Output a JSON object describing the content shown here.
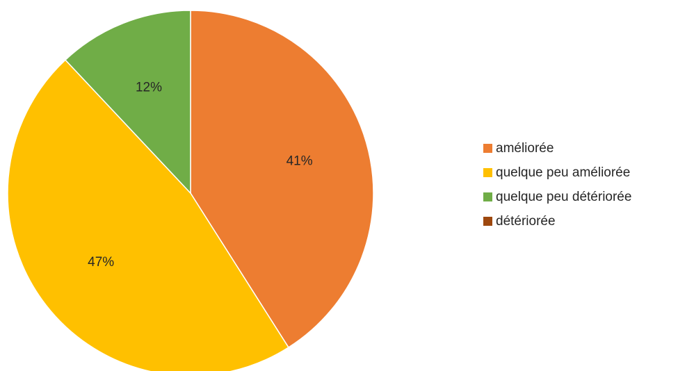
{
  "chart_data": {
    "type": "pie",
    "title": "",
    "series": [
      {
        "values": [
          41,
          47,
          12,
          0
        ],
        "labels": [
          "41%",
          "47%",
          "12%",
          ""
        ]
      }
    ],
    "categories": [
      "améliorée",
      "quelque peu améliorée",
      "quelque peu détériorée",
      "détériorée"
    ],
    "colors": [
      "#ED7D31",
      "#FFC000",
      "#70AD47",
      "#9E480E"
    ],
    "start_angle_deg": 0,
    "direction": "clockwise",
    "legend_position": "right"
  }
}
